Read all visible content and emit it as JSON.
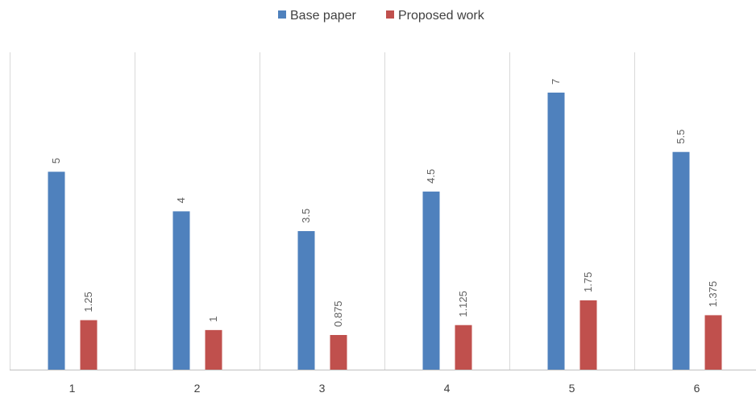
{
  "chart_data": {
    "type": "bar",
    "categories": [
      "1",
      "2",
      "3",
      "4",
      "5",
      "6"
    ],
    "series": [
      {
        "name": "Base paper",
        "values": [
          5,
          4,
          3.5,
          4.5,
          7,
          5.5
        ],
        "labels": [
          "5",
          "4",
          "3.5",
          "4.5",
          "7",
          "5.5"
        ],
        "color": "#4F81BD"
      },
      {
        "name": "Proposed work",
        "values": [
          1.25,
          1,
          0.875,
          1.125,
          1.75,
          1.375
        ],
        "labels": [
          "1.25",
          "1",
          "0.875",
          "1.125",
          "1.75",
          "1.375"
        ],
        "color": "#C0504D"
      }
    ],
    "ylim": [
      0,
      8
    ],
    "grid": "vertical separators between categories",
    "legend_position": "top-center",
    "data_labels": "rotated vertical above bars",
    "title": "",
    "xlabel": "",
    "ylabel": ""
  }
}
